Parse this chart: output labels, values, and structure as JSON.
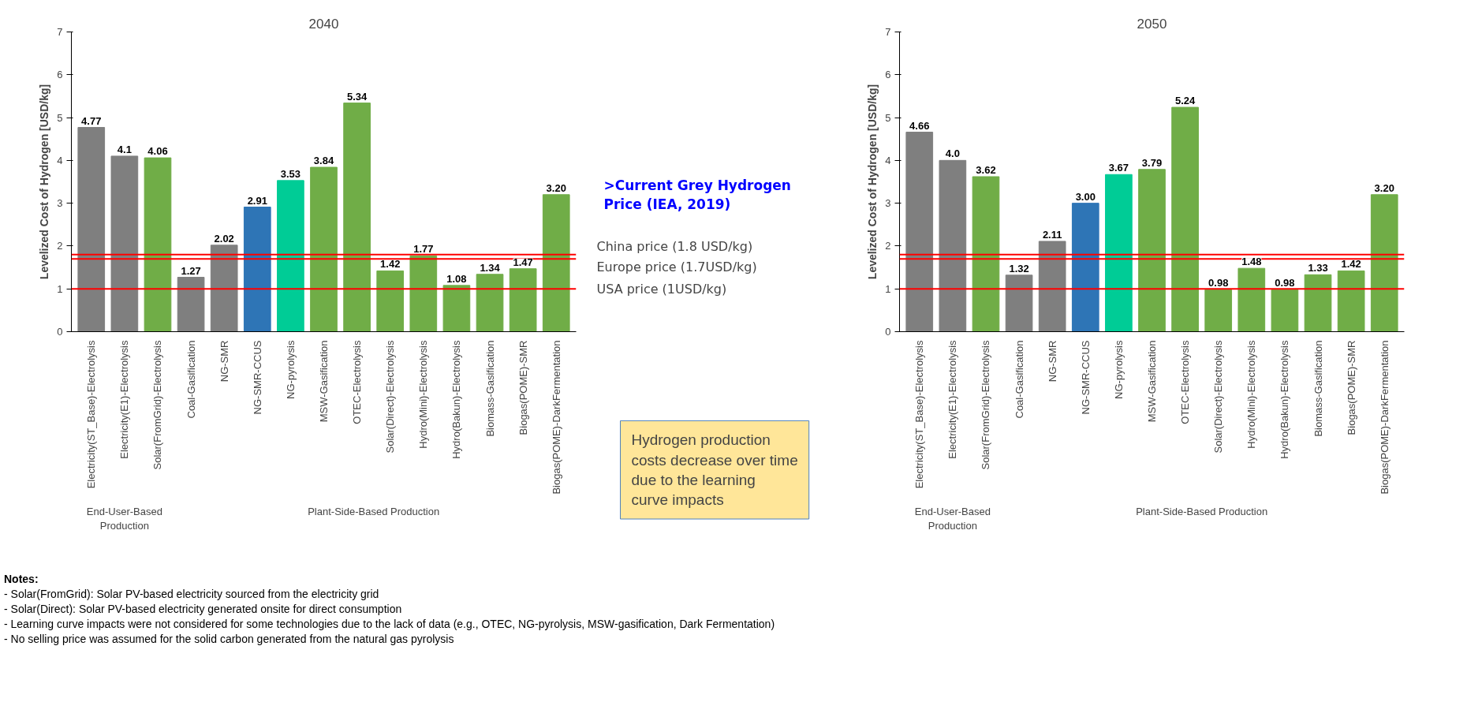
{
  "chart_data": [
    {
      "type": "bar",
      "title": "2040",
      "ylabel": "Levelized Cost of Hydrogen [USD/kg]",
      "categories": [
        "Electricity(ST_Base)-Electrolysis",
        "Electricity(E1)-Electrolysis",
        "Solar(FromGrid)-Electrolysis",
        "Coal-Gasification",
        "NG-SMR",
        "NG-SMR-CCUS",
        "NG-pyrolysis",
        "MSW-Gasification",
        "OTEC-Electrolysis",
        "Solar(Direct)-Electrolysis",
        "Hydro(Mini)-Electrolysis",
        "Hydro(Bakun)-Electrolysis",
        "Biomass-Gasification",
        "Biogas(POME)-SMR",
        "Biogas(POME)-DarkFermentation"
      ],
      "values": [
        4.77,
        4.1,
        4.06,
        1.27,
        2.02,
        2.91,
        3.53,
        3.84,
        5.34,
        1.42,
        1.77,
        1.08,
        1.34,
        1.47,
        3.2
      ],
      "value_labels": [
        "4.77",
        "4.1",
        "4.06",
        "1.27",
        "2.02",
        "2.91",
        "3.53",
        "3.84",
        "5.34",
        "1.42",
        "1.77",
        "1.08",
        "1.34",
        "1.47",
        "3.20"
      ],
      "colors": [
        "#7f7f7f",
        "#7f7f7f",
        "#70ad47",
        "#7f7f7f",
        "#7f7f7f",
        "#2e75b6",
        "#00cc96",
        "#70ad47",
        "#70ad47",
        "#70ad47",
        "#70ad47",
        "#70ad47",
        "#70ad47",
        "#70ad47",
        "#70ad47"
      ],
      "ylim": [
        0,
        7
      ],
      "yticks": [
        0,
        1,
        2,
        3,
        4,
        5,
        6,
        7
      ],
      "ref_lines": [
        {
          "axis": "y",
          "value": 1.8,
          "label": "China price (1.8 USD/kg)",
          "color": "#ff0000"
        },
        {
          "axis": "y",
          "value": 1.7,
          "label": "Europe price (1.7USD/kg)",
          "color": "#ff0000"
        },
        {
          "axis": "y",
          "value": 1,
          "label": "USA price (1USD/kg)",
          "color": "#ff0000"
        }
      ],
      "annotations": [
        ">Current Grey Hydrogen Price (IEA, 2019)",
        "Hydrogen production costs decrease over time due to the learning curve impacts",
        "End-User-Based Production",
        "Plant-Side-Based Production"
      ]
    },
    {
      "type": "bar",
      "title": "2050",
      "ylabel": "Levelized Cost of Hydrogen [USD/kg]",
      "categories": [
        "Electricity(ST_Base)-Electrolysis",
        "Electricity(E1)-Electrolysis",
        "Solar(FromGrid)-Electrolysis",
        "Coal-Gasification",
        "NG-SMR",
        "NG-SMR-CCUS",
        "NG-pyrolysis",
        "MSW-Gasification",
        "OTEC-Electrolysis",
        "Solar(Direct)-Electrolysis",
        "Hydro(Mini)-Electrolysis",
        "Hydro(Bakun)-Electrolysis",
        "Biomass-Gasification",
        "Biogas(POME)-SMR",
        "Biogas(POME)-DarkFermentation"
      ],
      "values": [
        4.66,
        4.0,
        3.62,
        1.32,
        2.11,
        3.0,
        3.67,
        3.79,
        5.24,
        0.98,
        1.48,
        0.98,
        1.33,
        1.42,
        3.2
      ],
      "value_labels": [
        "4.66",
        "4.0",
        "3.62",
        "1.32",
        "2.11",
        "3.00",
        "3.67",
        "3.79",
        "5.24",
        "0.98",
        "1.48",
        "0.98",
        "1.33",
        "1.42",
        "3.20"
      ],
      "colors": [
        "#7f7f7f",
        "#7f7f7f",
        "#70ad47",
        "#7f7f7f",
        "#7f7f7f",
        "#2e75b6",
        "#00cc96",
        "#70ad47",
        "#70ad47",
        "#70ad47",
        "#70ad47",
        "#70ad47",
        "#70ad47",
        "#70ad47",
        "#70ad47"
      ],
      "ylim": [
        0,
        7
      ],
      "yticks": [
        0,
        1,
        2,
        3,
        4,
        5,
        6,
        7
      ],
      "ref_lines": [
        {
          "axis": "y",
          "value": 1.8,
          "color": "#ff0000"
        },
        {
          "axis": "y",
          "value": 1.7,
          "color": "#ff0000"
        },
        {
          "axis": "y",
          "value": 1,
          "color": "#ff0000"
        }
      ],
      "annotations": [
        "End-User-Based Production",
        "Plant-Side-Based Production"
      ]
    },
    {
      "type": "other",
      "title": "Notes:",
      "annotations": [
        "- Solar(FromGrid): Solar PV-based electricity sourced from the electricity grid",
        "- Solar(Direct): Solar PV-based electricity generated onsite for direct consumption",
        "- Learning curve impacts were not considered for some technologies due to the lack of data (e.g., OTEC, NG-pyrolysis, MSW-gasification, Dark Fermentation)",
        "- No selling price was assumed for the solid carbon generated from the natural gas pyrolysis"
      ]
    }
  ]
}
